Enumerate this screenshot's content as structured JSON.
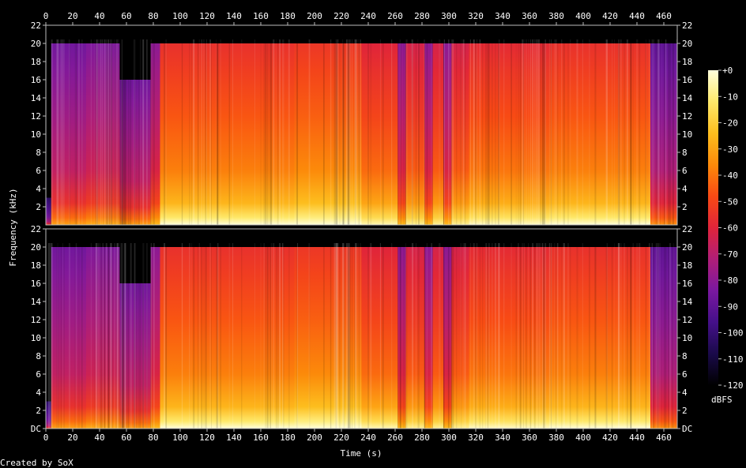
{
  "chart_data": {
    "type": "heatmap",
    "title": "",
    "xlabel": "Time (s)",
    "ylabel": "Frequency (kHz)",
    "credit": "Created by SoX",
    "xlim": [
      0,
      470
    ],
    "ylim_khz": [
      0,
      22
    ],
    "x_ticks": [
      0,
      20,
      40,
      60,
      80,
      100,
      120,
      140,
      160,
      180,
      200,
      220,
      240,
      260,
      280,
      300,
      320,
      340,
      360,
      380,
      400,
      420,
      440,
      460
    ],
    "y_ticks": [
      "DC",
      "2",
      "4",
      "6",
      "8",
      "10",
      "12",
      "14",
      "16",
      "18",
      "20",
      "22"
    ],
    "channels": 2,
    "colorbar": {
      "label": "dBFS",
      "range": [
        -120,
        0
      ],
      "ticks": [
        "+0",
        "-10",
        "-20",
        "-30",
        "-40",
        "-50",
        "-60",
        "-70",
        "-80",
        "-90",
        "-100",
        "-110",
        "-120"
      ],
      "colors": [
        "#000000",
        "#1a0a4a",
        "#45108a",
        "#7a18a0",
        "#b01e78",
        "#e0243a",
        "#f84a14",
        "#fc8a0a",
        "#fdbe1e",
        "#fee96a",
        "#ffffdc"
      ]
    },
    "segments": [
      {
        "start": 0,
        "end": 4,
        "level": -95,
        "cutoff_khz": 3
      },
      {
        "start": 4,
        "end": 30,
        "level": -78,
        "cutoff_khz": 20
      },
      {
        "start": 30,
        "end": 55,
        "level": -75,
        "cutoff_khz": 20
      },
      {
        "start": 55,
        "end": 78,
        "level": -78,
        "cutoff_khz": 16
      },
      {
        "start": 78,
        "end": 85,
        "level": -72,
        "cutoff_khz": 20
      },
      {
        "start": 85,
        "end": 185,
        "level": -48,
        "cutoff_khz": 20
      },
      {
        "start": 185,
        "end": 235,
        "level": -46,
        "cutoff_khz": 20
      },
      {
        "start": 235,
        "end": 262,
        "level": -52,
        "cutoff_khz": 20
      },
      {
        "start": 262,
        "end": 268,
        "level": -72,
        "cutoff_khz": 20
      },
      {
        "start": 268,
        "end": 282,
        "level": -55,
        "cutoff_khz": 20
      },
      {
        "start": 282,
        "end": 288,
        "level": -72,
        "cutoff_khz": 20
      },
      {
        "start": 288,
        "end": 296,
        "level": -55,
        "cutoff_khz": 20
      },
      {
        "start": 296,
        "end": 302,
        "level": -72,
        "cutoff_khz": 20
      },
      {
        "start": 302,
        "end": 315,
        "level": -55,
        "cutoff_khz": 20
      },
      {
        "start": 315,
        "end": 375,
        "level": -50,
        "cutoff_khz": 20
      },
      {
        "start": 375,
        "end": 450,
        "level": -48,
        "cutoff_khz": 20
      },
      {
        "start": 450,
        "end": 470,
        "level": -82,
        "cutoff_khz": 20
      }
    ]
  }
}
